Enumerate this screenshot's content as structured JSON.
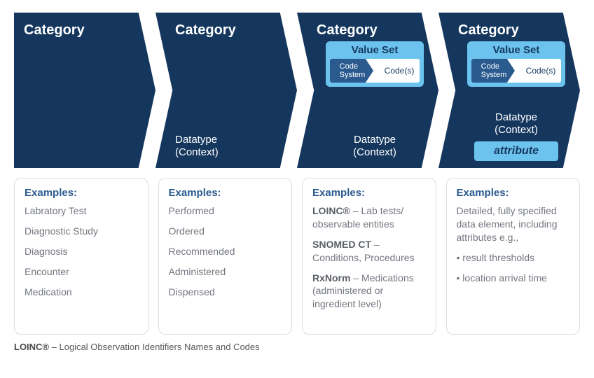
{
  "colors": {
    "chevron_bg": "#15375e",
    "value_set_bg": "#6bc3ee",
    "value_set_title": "#15375e",
    "code_sys_bg": "#2a5a8e",
    "codes_text": "#15375e",
    "attribute_bg": "#6bc3ee",
    "attribute_text": "#15375e",
    "examples_title": "#2a5a8e",
    "examples_text": "#737780",
    "examples_strong": "#5a5f66",
    "border": "#d9dde2"
  },
  "chevrons": [
    {
      "title": "Category",
      "has_valueset": false,
      "datatype": "",
      "has_attribute": false
    },
    {
      "title": "Category",
      "has_valueset": false,
      "datatype": "Datatype\n(Context)",
      "has_attribute": false
    },
    {
      "title": "Category",
      "has_valueset": true,
      "valueset_title": "Value Set",
      "code_system": "Code\nSystem",
      "codes": "Code(s)",
      "datatype": "Datatype\n(Context)",
      "has_attribute": false
    },
    {
      "title": "Category",
      "has_valueset": true,
      "valueset_title": "Value Set",
      "code_system": "Code\nSystem",
      "codes": "Code(s)",
      "datatype": "Datatype\n(Context)",
      "has_attribute": true,
      "attribute": "attribute"
    }
  ],
  "examples_heading": "Examples:",
  "examples": [
    {
      "items": [
        {
          "text": "Labratory Test"
        },
        {
          "text": "Diagnostic Study"
        },
        {
          "text": "Diagnosis"
        },
        {
          "text": "Encounter"
        },
        {
          "text": "Medication"
        }
      ]
    },
    {
      "items": [
        {
          "text": "Performed"
        },
        {
          "text": "Ordered"
        },
        {
          "text": "Recommended"
        },
        {
          "text": "Administered"
        },
        {
          "text": "Dispensed"
        }
      ]
    },
    {
      "items": [
        {
          "strong": "LOINC®",
          "text": " – Lab tests/ observable entities"
        },
        {
          "strong": "SNOMED CT",
          "text": " – Conditions, Procedures"
        },
        {
          "strong": "RxNorm",
          "text": " – Medications (administered or ingredient level)"
        }
      ]
    },
    {
      "items": [
        {
          "text": "Detailed, fully specified data element, including attributes e.g.,"
        },
        {
          "bullet": true,
          "text": "result thresholds"
        },
        {
          "bullet": true,
          "text": "location arrival time"
        }
      ]
    }
  ],
  "footnote_strong": "LOINC®",
  "footnote_rest": " – Logical Observation Identifiers Names and Codes"
}
